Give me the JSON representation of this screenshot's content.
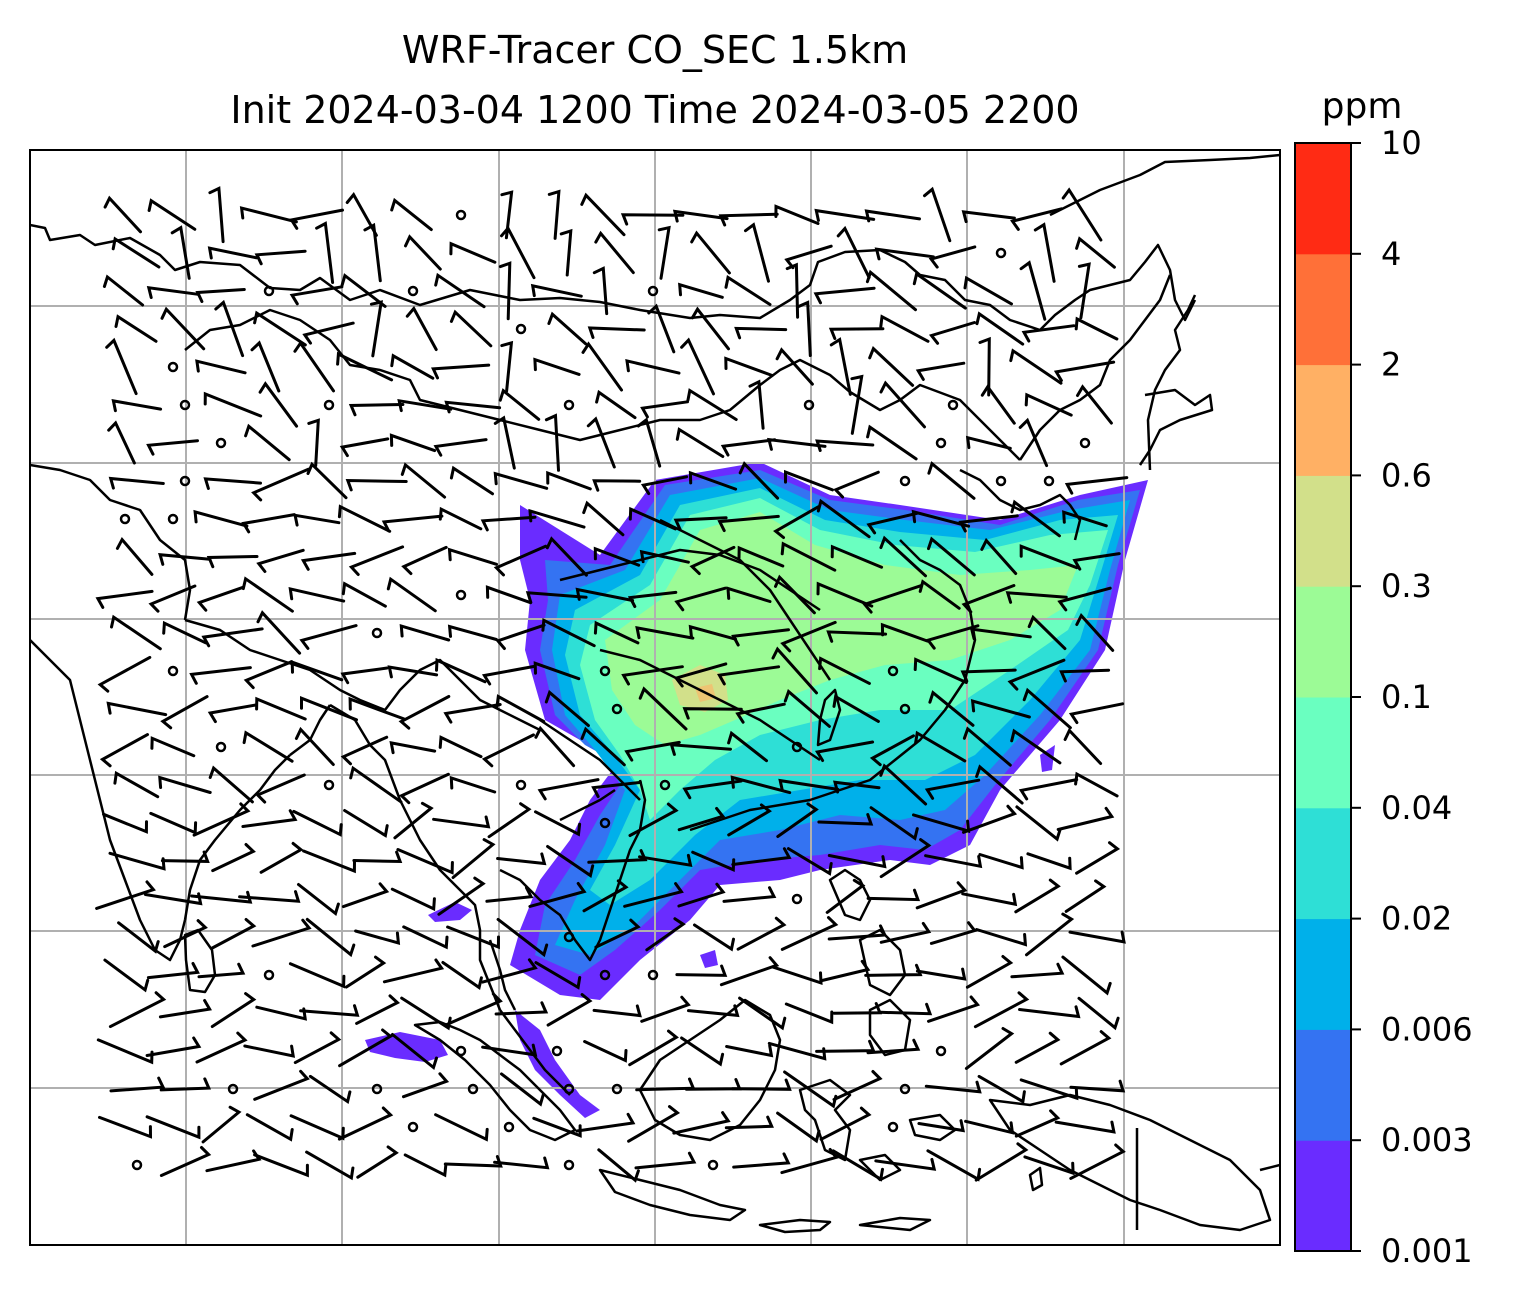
{
  "title": {
    "line1": "WRF-Tracer CO_SEC 1.5km",
    "line2": "Init 2024-03-04 1200 Time 2024-03-05 2200"
  },
  "colorbar": {
    "unit": "ppm",
    "levels": [
      "0.001",
      "0.003",
      "0.006",
      "0.02",
      "0.04",
      "0.1",
      "0.3",
      "0.6",
      "2",
      "4",
      "10"
    ],
    "colors": [
      "#6a2cff",
      "#3473f2",
      "#00b0ea",
      "#2edfd6",
      "#6affc0",
      "#9cfb96",
      "#d2e08a",
      "#ffb064",
      "#ff7038",
      "#ff2b14"
    ]
  },
  "map": {
    "gridlines": true,
    "coastline_color": "#000000",
    "grid_color": "#b0b0b0"
  }
}
